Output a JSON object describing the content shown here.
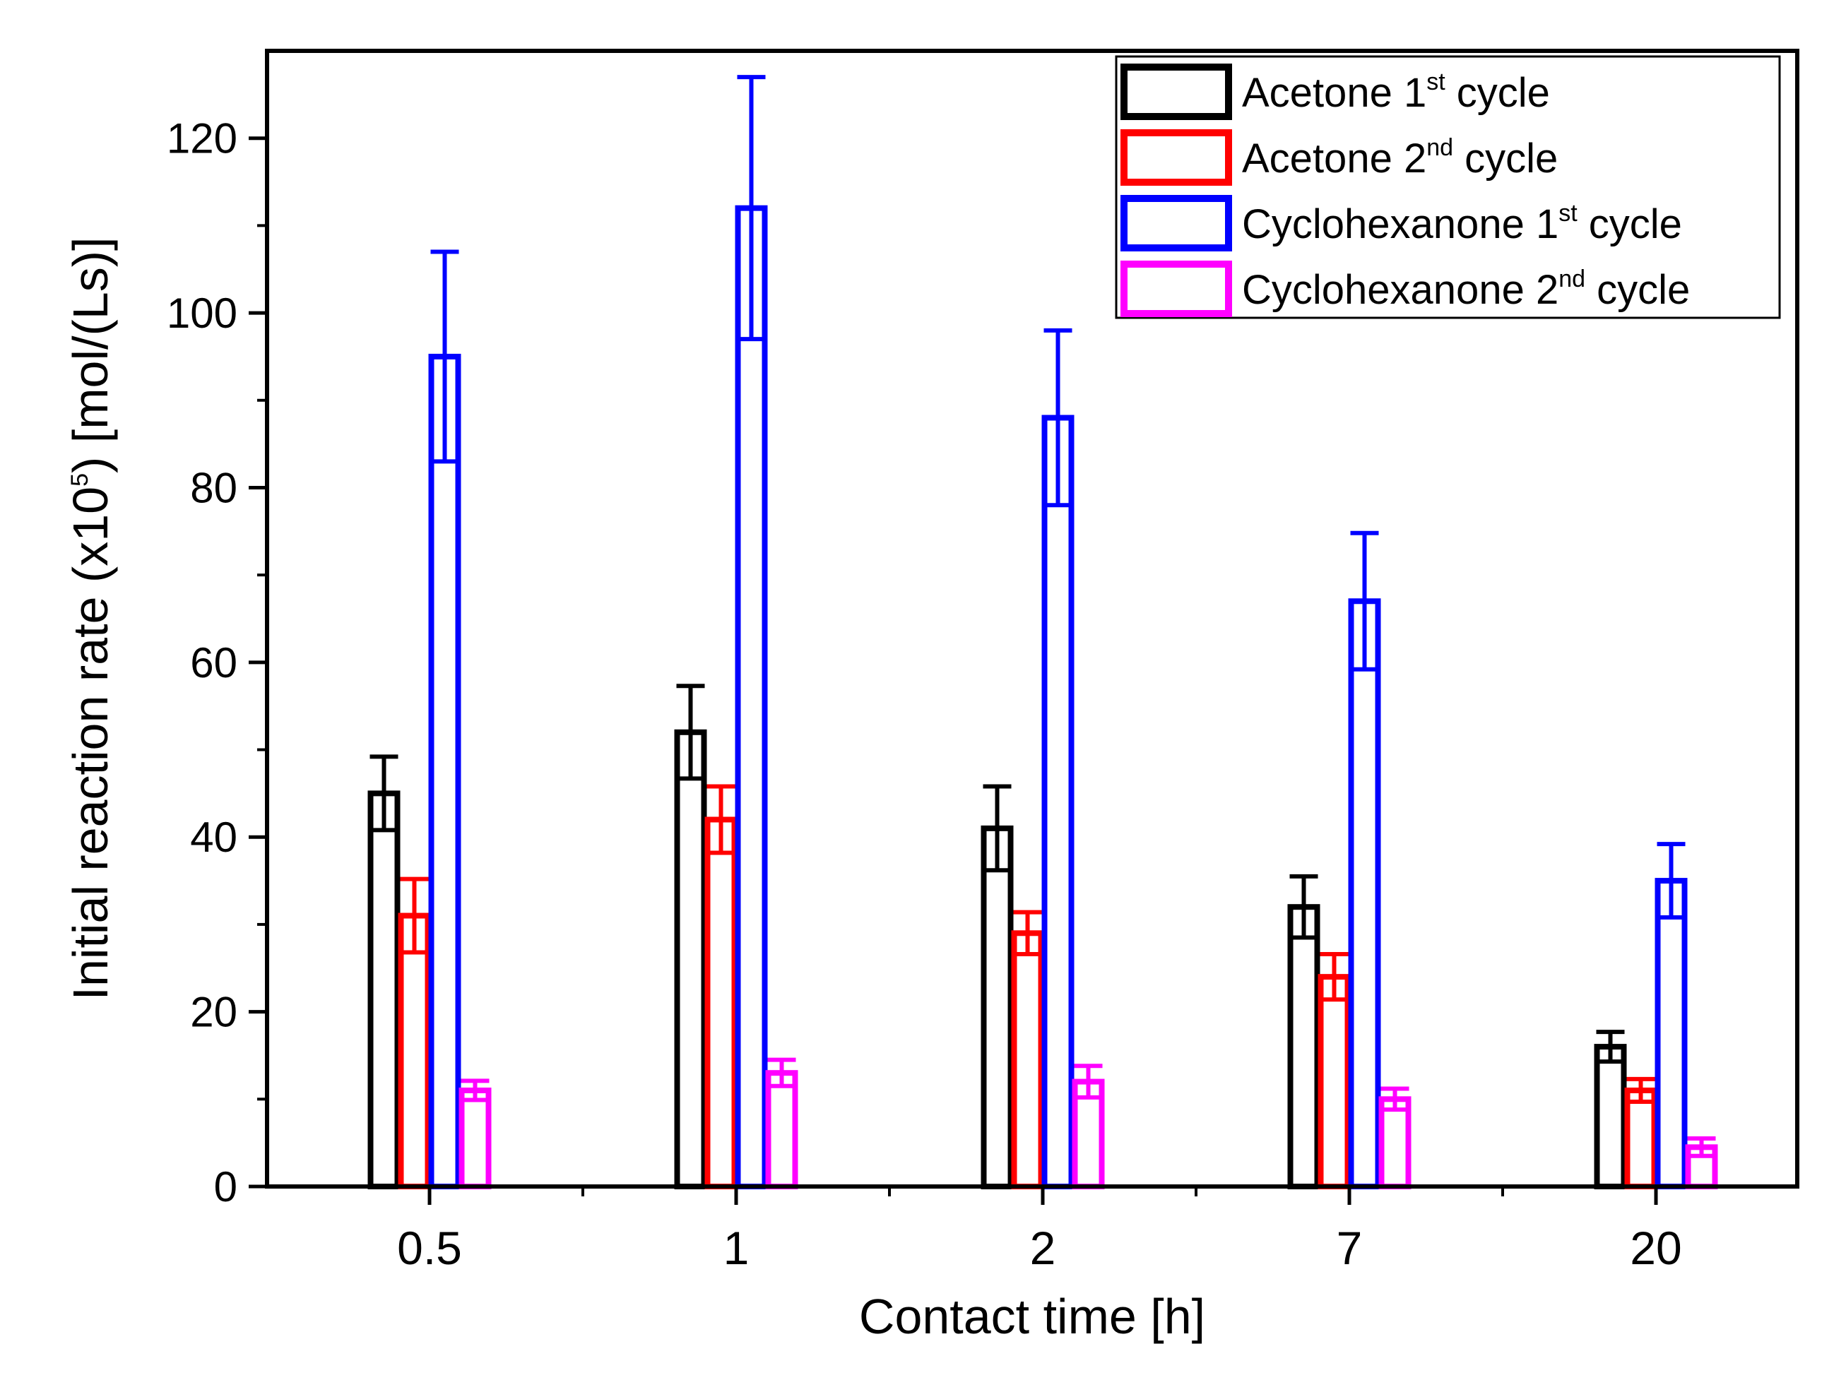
{
  "chart_data": {
    "type": "bar",
    "title": "",
    "xlabel": "Contact time [h]",
    "ylabel": {
      "main": "Initial reaction rate (x10",
      "sup": "5",
      "rest": ") [mol/(Ls)]"
    },
    "categories": [
      "0.5",
      "1",
      "2",
      "7",
      "20"
    ],
    "ylim": [
      0,
      130
    ],
    "yticks": [
      "0",
      "20",
      "40",
      "60",
      "80",
      "100",
      "120"
    ],
    "ytick_values": [
      0,
      20,
      40,
      60,
      80,
      100,
      120
    ],
    "legend_position": "top-right",
    "series": [
      {
        "name": "Acetone 1st cycle",
        "label": {
          "pre": "Acetone 1",
          "sup": "st",
          "post": " cycle"
        },
        "color": "#000000",
        "values": [
          45,
          52,
          41,
          32,
          16
        ],
        "errors": [
          4.2,
          5.3,
          4.8,
          3.5,
          1.7
        ]
      },
      {
        "name": "Acetone 2nd cycle",
        "label": {
          "pre": "Acetone 2",
          "sup": "nd",
          "post": " cycle"
        },
        "color": "#ff0000",
        "values": [
          31,
          42,
          29,
          24,
          11
        ],
        "errors": [
          4.2,
          3.8,
          2.4,
          2.6,
          1.3
        ]
      },
      {
        "name": "Cyclohexanone 1st cycle",
        "label": {
          "pre": "Cyclohexanone 1",
          "sup": "st",
          "post": " cycle"
        },
        "color": "#0000ff",
        "values": [
          95,
          112,
          88,
          67,
          35
        ],
        "errors": [
          12,
          15,
          10,
          7.8,
          4.2
        ]
      },
      {
        "name": "Cyclohexanone 2nd cycle",
        "label": {
          "pre": "Cyclohexanone 2",
          "sup": "nd",
          "post": " cycle"
        },
        "color": "#ff00ff",
        "values": [
          11,
          13,
          12,
          10,
          4.5
        ],
        "errors": [
          1.1,
          1.5,
          1.8,
          1.2,
          1.0
        ]
      }
    ]
  }
}
